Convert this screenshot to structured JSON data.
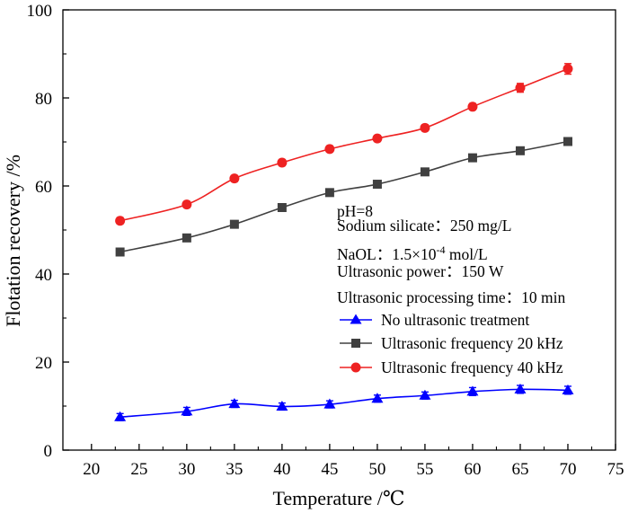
{
  "chart_data": {
    "type": "line",
    "title": "",
    "xlabel": "Temperature /℃",
    "ylabel": "Flotation recovery /%",
    "xlim": [
      17,
      75
    ],
    "ylim": [
      0,
      100
    ],
    "xticks": [
      20,
      25,
      30,
      35,
      40,
      45,
      50,
      55,
      60,
      65,
      70,
      75
    ],
    "yticks": [
      0,
      20,
      40,
      60,
      80,
      100
    ],
    "grid": false,
    "legend_position": "right-middle",
    "annotations": [
      "pH=8",
      "Sodium silicate：250 mg/L",
      "NaOL：1.5×10",
      "-4",
      " mol/L",
      "Ultrasonic power：150 W",
      "Ultrasonic processing time：10 min"
    ],
    "x": [
      23,
      30,
      35,
      40,
      45,
      50,
      55,
      60,
      65,
      70
    ],
    "series": [
      {
        "name": "No ultrasonic treatment",
        "color": "#0000ff",
        "marker": "triangle",
        "values": [
          7.5,
          8.8,
          10.5,
          9.9,
          10.4,
          11.7,
          12.4,
          13.3,
          13.8,
          13.6
        ],
        "errors": [
          0.8,
          0.9,
          0.8,
          0.8,
          0.8,
          0.8,
          0.8,
          0.9,
          0.9,
          0.9
        ]
      },
      {
        "name": "Ultrasonic frequency 20 kHz",
        "color": "#404040",
        "marker": "square",
        "values": [
          45.0,
          48.2,
          51.3,
          55.1,
          58.5,
          60.4,
          63.2,
          66.4,
          68.0,
          70.1
        ],
        "errors": [
          0.6,
          0.6,
          0.6,
          0.6,
          0.6,
          0.6,
          0.6,
          0.6,
          0.6,
          0.6
        ]
      },
      {
        "name": "Ultrasonic frequency 40 kHz",
        "color": "#ee2222",
        "marker": "circle",
        "values": [
          52.1,
          55.8,
          61.7,
          65.3,
          68.4,
          70.8,
          73.2,
          78.0,
          82.3,
          86.6
        ],
        "errors": [
          0.7,
          0.7,
          0.7,
          0.7,
          0.7,
          0.7,
          0.7,
          0.7,
          1.0,
          1.2
        ]
      }
    ]
  }
}
